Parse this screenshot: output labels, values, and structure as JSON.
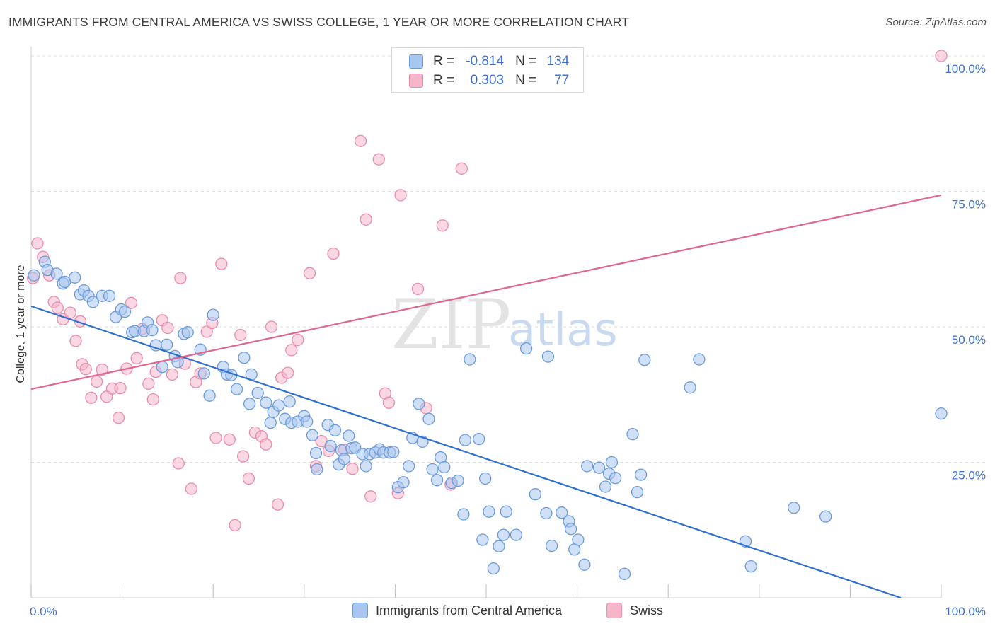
{
  "title": "IMMIGRANTS FROM CENTRAL AMERICA VS SWISS COLLEGE, 1 YEAR OR MORE CORRELATION CHART",
  "source": "Source: ZipAtlas.com",
  "watermark": {
    "zip": "ZIP",
    "atlas": "atlas"
  },
  "colors": {
    "blue_fill": "#a9c6f0",
    "blue_stroke": "#6c9bdc",
    "blue_line": "#2f6fd0",
    "pink_fill": "#f5b6ca",
    "pink_stroke": "#e98cab",
    "pink_line": "#e0668f",
    "tick_text": "#3d6fcc",
    "grid": "#dedede"
  },
  "legend": {
    "rows": [
      {
        "r_label": "R =",
        "r_value": "-0.814",
        "n_label": "N =",
        "n_value": "134",
        "color": "blue"
      },
      {
        "r_label": "R =",
        "r_value": "0.303",
        "n_label": "N =",
        "n_value": "77",
        "color": "pink"
      }
    ]
  },
  "bottom_legend": [
    {
      "label": "Immigrants from Central America",
      "color": "blue"
    },
    {
      "label": "Swiss",
      "color": "pink"
    }
  ],
  "chart_data": {
    "type": "scatter",
    "title": "IMMIGRANTS FROM CENTRAL AMERICA VS SWISS COLLEGE, 1 YEAR OR MORE CORRELATION CHART",
    "xlabel": "",
    "ylabel": "College, 1 year or more",
    "xlim": [
      0,
      100
    ],
    "ylim": [
      0,
      100
    ],
    "x_tick_labels": [
      "0.0%",
      "100.0%"
    ],
    "y_tick_labels": [
      "25.0%",
      "50.0%",
      "75.0%",
      "100.0%"
    ],
    "y_ticks": [
      25,
      50,
      75,
      100
    ],
    "grid": "horizontal dashed",
    "legend_position": "top-center",
    "series": [
      {
        "name": "Immigrants from Central America",
        "trend": {
          "x": [
            0,
            100
          ],
          "y": [
            53.8,
            -2.5
          ]
        },
        "points": [
          [
            0.3,
            59.5
          ],
          [
            1.5,
            62
          ],
          [
            1.8,
            60.5
          ],
          [
            2.8,
            59.8
          ],
          [
            3.5,
            58
          ],
          [
            3.7,
            58.3
          ],
          [
            4.8,
            59.1
          ],
          [
            5.4,
            56
          ],
          [
            5.8,
            56.7
          ],
          [
            6.3,
            55.7
          ],
          [
            6.8,
            54.6
          ],
          [
            7.8,
            55.7
          ],
          [
            8.6,
            55.7
          ],
          [
            9.3,
            51.8
          ],
          [
            9.9,
            53.2
          ],
          [
            10.3,
            52.8
          ],
          [
            11.1,
            49
          ],
          [
            11.4,
            49.2
          ],
          [
            12.4,
            49.2
          ],
          [
            12.8,
            50.8
          ],
          [
            13.3,
            49.4
          ],
          [
            13.7,
            46.6
          ],
          [
            14.4,
            42.6
          ],
          [
            14.9,
            46.7
          ],
          [
            15.8,
            44.6
          ],
          [
            16.1,
            43.5
          ],
          [
            16.8,
            48.7
          ],
          [
            17.2,
            49
          ],
          [
            18.6,
            45.8
          ],
          [
            19,
            41.4
          ],
          [
            19.6,
            37.3
          ],
          [
            20,
            52.2
          ],
          [
            21.1,
            42.6
          ],
          [
            21.5,
            41.2
          ],
          [
            22,
            41.1
          ],
          [
            22.6,
            38.5
          ],
          [
            23.4,
            44.3
          ],
          [
            24,
            35.8
          ],
          [
            24.2,
            41.2
          ],
          [
            24.9,
            37.8
          ],
          [
            25.8,
            36
          ],
          [
            26.3,
            32.3
          ],
          [
            26.6,
            34.3
          ],
          [
            27.2,
            35.5
          ],
          [
            27.9,
            33
          ],
          [
            28.4,
            36.2
          ],
          [
            28.6,
            32.3
          ],
          [
            29.3,
            32.5
          ],
          [
            30,
            33.5
          ],
          [
            30.3,
            32.5
          ],
          [
            30.9,
            30
          ],
          [
            31.3,
            26.7
          ],
          [
            31.4,
            23.7
          ],
          [
            32.6,
            31.9
          ],
          [
            32.9,
            28
          ],
          [
            33.4,
            30.9
          ],
          [
            33.8,
            24.6
          ],
          [
            34.1,
            27.2
          ],
          [
            34.4,
            25.6
          ],
          [
            34.9,
            29.9
          ],
          [
            35.2,
            27.6
          ],
          [
            35.6,
            27.7
          ],
          [
            36.4,
            26.5
          ],
          [
            36.8,
            24.3
          ],
          [
            37.2,
            26.5
          ],
          [
            37.8,
            26.8
          ],
          [
            38.3,
            27.4
          ],
          [
            38.7,
            26.8
          ],
          [
            39.4,
            26.8
          ],
          [
            39.8,
            26.9
          ],
          [
            40.3,
            20.4
          ],
          [
            40.9,
            21.3
          ],
          [
            41.5,
            24.3
          ],
          [
            41.9,
            29.5
          ],
          [
            42.6,
            35.8
          ],
          [
            43,
            28.8
          ],
          [
            43.7,
            33
          ],
          [
            44.1,
            23.7
          ],
          [
            44.6,
            21.7
          ],
          [
            45,
            25.9
          ],
          [
            45.4,
            24.1
          ],
          [
            46.2,
            21.2
          ],
          [
            46.9,
            21.6
          ],
          [
            47.5,
            15.4
          ],
          [
            47.7,
            29.1
          ],
          [
            48.2,
            44
          ],
          [
            49.2,
            29.3
          ],
          [
            49.6,
            10.7
          ],
          [
            49.9,
            22
          ],
          [
            50.3,
            15.9
          ],
          [
            50.8,
            5.4
          ],
          [
            51.4,
            9.5
          ],
          [
            51.9,
            11.6
          ],
          [
            52.2,
            15.9
          ],
          [
            53.3,
            11.6
          ],
          [
            54.4,
            46
          ],
          [
            55.4,
            19.1
          ],
          [
            56.6,
            15.6
          ],
          [
            56.8,
            44.5
          ],
          [
            57.2,
            9.6
          ],
          [
            58.3,
            15.7
          ],
          [
            59.1,
            14.1
          ],
          [
            59.3,
            12.7
          ],
          [
            59.7,
            8.9
          ],
          [
            60.1,
            10.7
          ],
          [
            60.8,
            6.1
          ],
          [
            61.1,
            24.3
          ],
          [
            62.4,
            24
          ],
          [
            63.1,
            20.5
          ],
          [
            63.5,
            22.9
          ],
          [
            63.8,
            25
          ],
          [
            64.2,
            22.1
          ],
          [
            65.2,
            4.4
          ],
          [
            66.1,
            30.2
          ],
          [
            66.6,
            19.5
          ],
          [
            67,
            22.7
          ],
          [
            67.4,
            43.9
          ],
          [
            72.4,
            38.8
          ],
          [
            73.4,
            44
          ],
          [
            78.5,
            10.4
          ],
          [
            79.1,
            5.8
          ],
          [
            83.8,
            16.6
          ],
          [
            87.3,
            15
          ],
          [
            100,
            34
          ]
        ]
      },
      {
        "name": "Swiss",
        "trend": {
          "x": [
            0,
            100
          ],
          "y": [
            38.5,
            74.3
          ]
        },
        "points": [
          [
            0.2,
            59
          ],
          [
            0.7,
            65.4
          ],
          [
            1.3,
            62.9
          ],
          [
            2,
            59.5
          ],
          [
            2.5,
            54.6
          ],
          [
            2.9,
            53.5
          ],
          [
            3.5,
            51.4
          ],
          [
            4.3,
            52.6
          ],
          [
            4.9,
            47.4
          ],
          [
            5.4,
            51
          ],
          [
            5.6,
            43.1
          ],
          [
            6,
            42.2
          ],
          [
            6.6,
            36.9
          ],
          [
            7.2,
            39.9
          ],
          [
            7.8,
            42.1
          ],
          [
            8.3,
            37.1
          ],
          [
            8.9,
            38.6
          ],
          [
            9.6,
            33.2
          ],
          [
            9.8,
            38.7
          ],
          [
            10.5,
            42.3
          ],
          [
            11,
            54.4
          ],
          [
            11.6,
            44.2
          ],
          [
            12.2,
            49.6
          ],
          [
            12.9,
            39.5
          ],
          [
            13.4,
            36.6
          ],
          [
            13.7,
            41.7
          ],
          [
            14.4,
            51.2
          ],
          [
            15,
            49.8
          ],
          [
            15.5,
            41.2
          ],
          [
            16.2,
            24.8
          ],
          [
            16.4,
            59
          ],
          [
            16.9,
            43.2
          ],
          [
            17.6,
            20.1
          ],
          [
            18.1,
            39.8
          ],
          [
            18.6,
            41.4
          ],
          [
            19.3,
            49.1
          ],
          [
            19.9,
            50.7
          ],
          [
            20.3,
            29.5
          ],
          [
            20.9,
            61.6
          ],
          [
            21.8,
            29.2
          ],
          [
            22.4,
            13.4
          ],
          [
            23,
            48.5
          ],
          [
            23.3,
            26.1
          ],
          [
            23.9,
            22
          ],
          [
            24.6,
            30.5
          ],
          [
            25.3,
            29.8
          ],
          [
            25.8,
            28.3
          ],
          [
            26.4,
            50
          ],
          [
            27.1,
            17.2
          ],
          [
            27.5,
            40.6
          ],
          [
            28.2,
            41.5
          ],
          [
            28.6,
            45.7
          ],
          [
            29.3,
            47.6
          ],
          [
            30.6,
            59.9
          ],
          [
            31.3,
            24.3
          ],
          [
            31.9,
            28.9
          ],
          [
            32.7,
            27.1
          ],
          [
            33.2,
            63.5
          ],
          [
            34.4,
            27.3
          ],
          [
            35.3,
            23.8
          ],
          [
            36.2,
            84.3
          ],
          [
            36.8,
            69.8
          ],
          [
            37.3,
            18.7
          ],
          [
            38.2,
            80.9
          ],
          [
            38.9,
            37.7
          ],
          [
            39.3,
            36
          ],
          [
            40.3,
            19.3
          ],
          [
            40.6,
            74.3
          ],
          [
            42.5,
            57
          ],
          [
            43.4,
            35
          ],
          [
            45.2,
            68.7
          ],
          [
            46.1,
            20.9
          ],
          [
            47.3,
            79.2
          ],
          [
            100,
            100
          ]
        ]
      }
    ]
  }
}
